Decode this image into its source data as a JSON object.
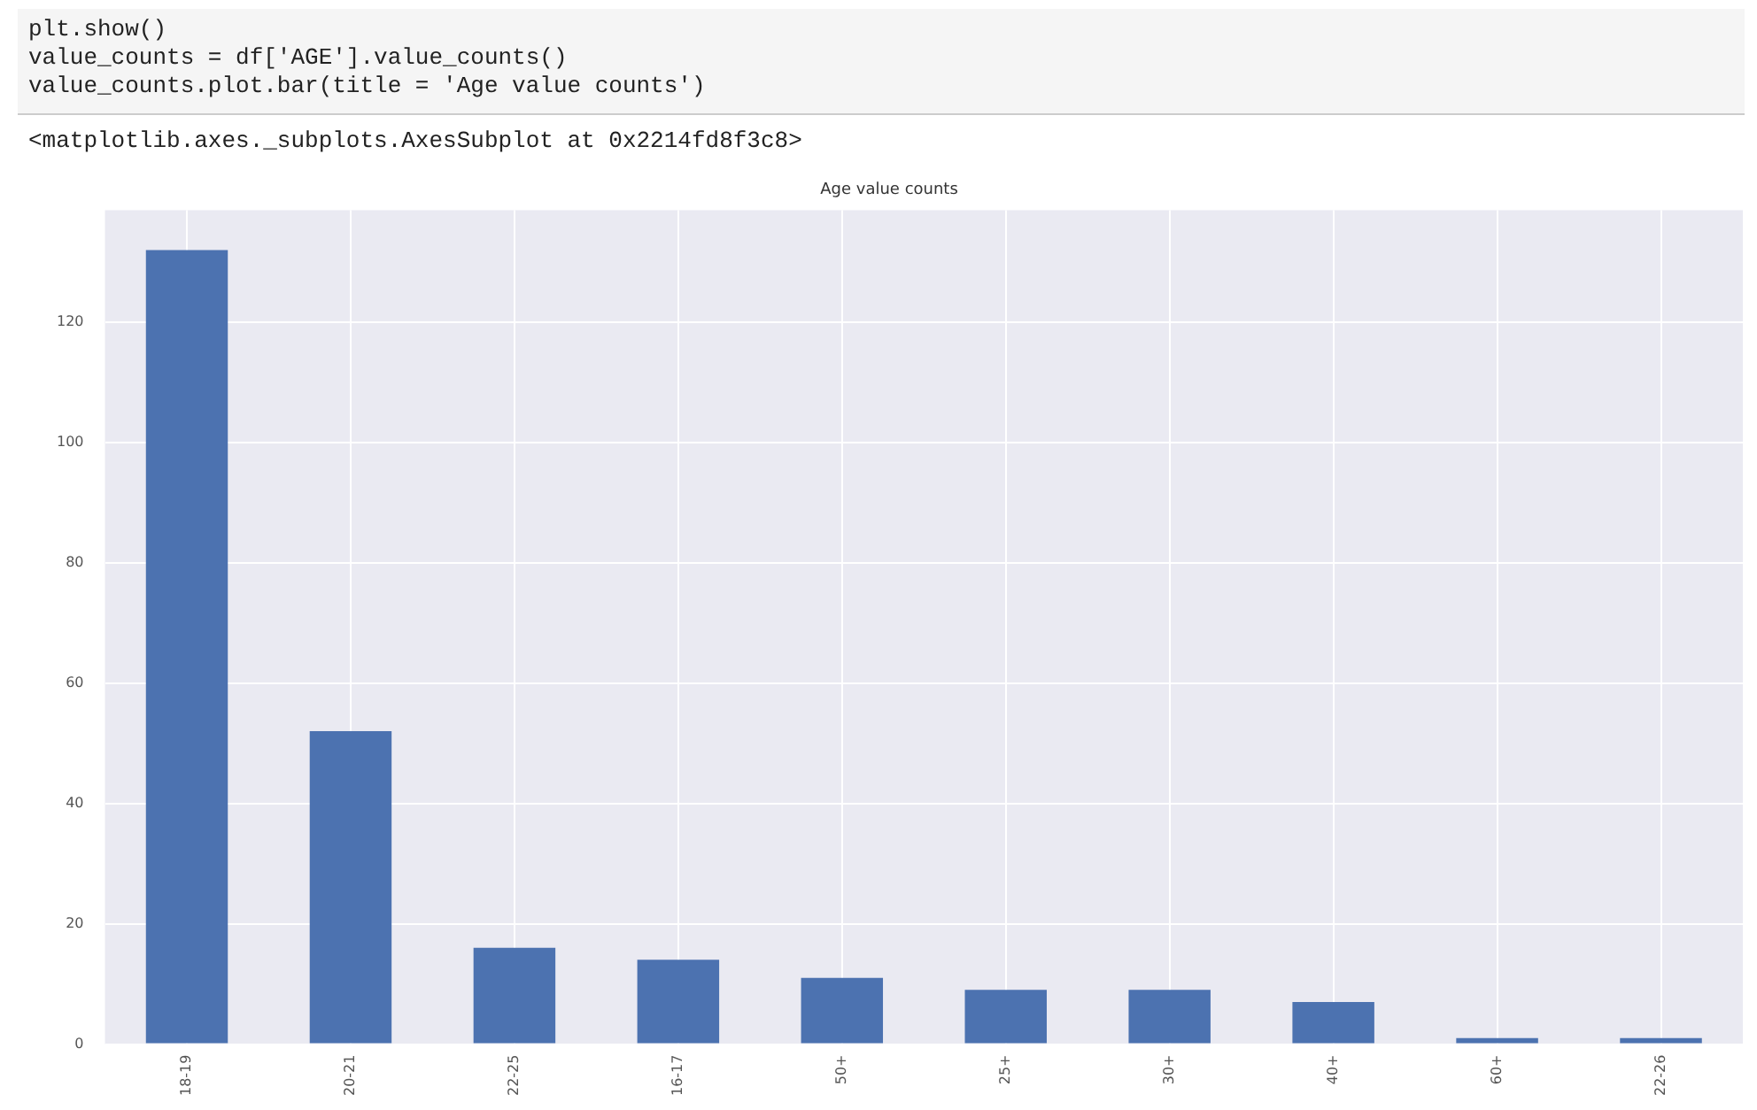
{
  "chart_data": {
    "type": "bar",
    "title": "Age value counts",
    "categories": [
      "18-19",
      "20-21",
      "22-25",
      "16-17",
      "50+",
      "25+",
      "30+",
      "40+",
      "60+",
      "22-26"
    ],
    "values": [
      132,
      52,
      16,
      14,
      11,
      9,
      9,
      7,
      1,
      1
    ],
    "color": "#4c72b0",
    "ylim": [
      0,
      138.6
    ],
    "yticks": [
      0,
      20,
      40,
      60,
      80,
      100,
      120
    ],
    "grid": true,
    "legend": false,
    "annotations": [
      "plt.show()",
      "value_counts = df['AGE'].value_counts()",
      "value_counts.plot.bar(title = 'Age value counts')",
      "<matplotlib.axes._subplots.AxesSubplot at 0x2214fd8f3c8>"
    ]
  }
}
